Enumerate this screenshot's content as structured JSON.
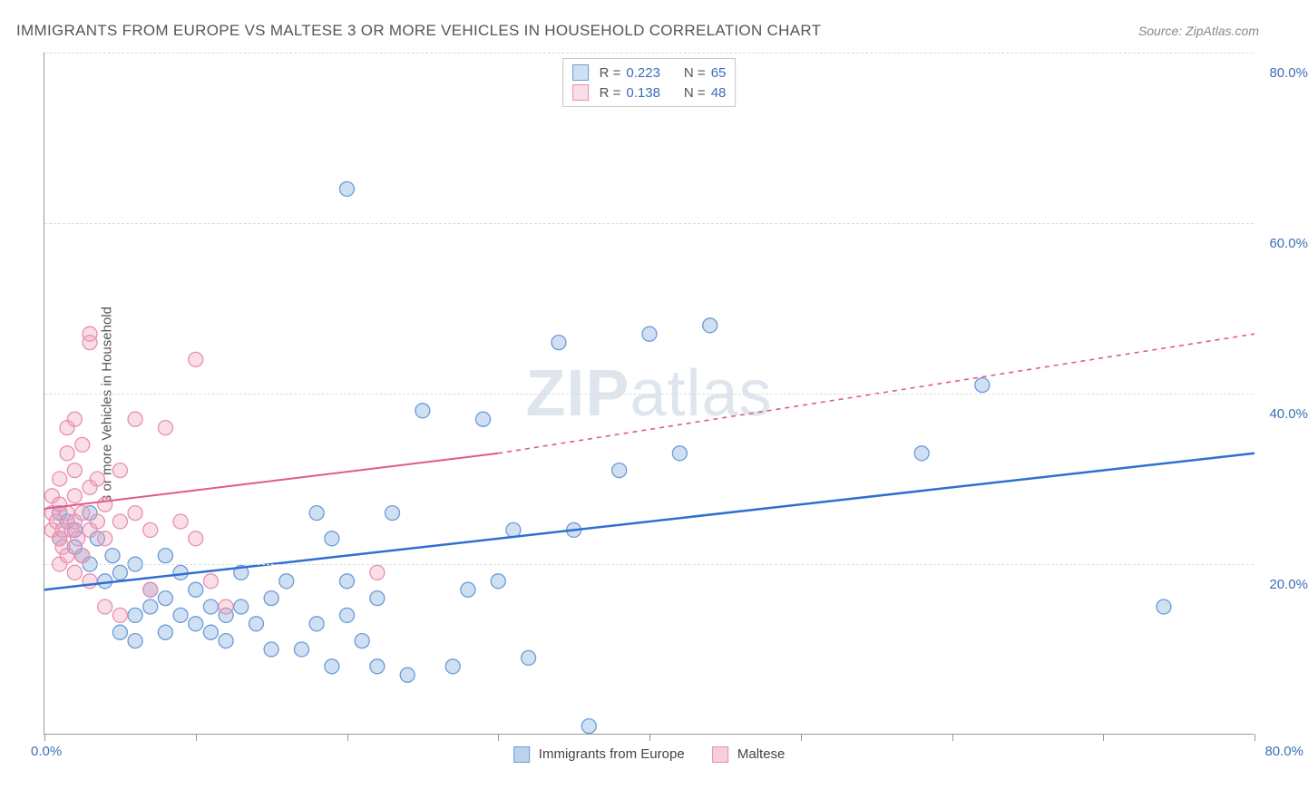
{
  "header": {
    "title": "IMMIGRANTS FROM EUROPE VS MALTESE 3 OR MORE VEHICLES IN HOUSEHOLD CORRELATION CHART",
    "source": "Source: ZipAtlas.com"
  },
  "chart": {
    "type": "scatter",
    "ylabel": "3 or more Vehicles in Household",
    "xlim": [
      0,
      80
    ],
    "ylim": [
      0,
      80
    ],
    "x_origin_label": "0.0%",
    "x_max_label": "80.0%",
    "y_ticks": [
      {
        "value": 20,
        "label": "20.0%"
      },
      {
        "value": 40,
        "label": "40.0%"
      },
      {
        "value": 60,
        "label": "60.0%"
      },
      {
        "value": 80,
        "label": "80.0%"
      }
    ],
    "x_tick_positions": [
      0,
      10,
      20,
      30,
      40,
      50,
      60,
      70,
      80
    ],
    "grid_color": "#dcdcdc",
    "background_color": "#ffffff",
    "axis_color": "#999999",
    "series": [
      {
        "name": "Immigrants from Europe",
        "color_fill": "rgba(120,165,220,0.35)",
        "color_stroke": "#6a9bd8",
        "marker_radius": 8,
        "trend": {
          "x1": 0,
          "y1": 17,
          "x2_solid": 80,
          "y2_solid": 33,
          "color": "#2f6fd0",
          "width": 2.5
        },
        "R_label": "R =",
        "R_value": "0.223",
        "N_label": "N =",
        "N_value": "65",
        "points": [
          [
            1,
            26
          ],
          [
            1,
            23
          ],
          [
            1.5,
            25
          ],
          [
            2,
            24
          ],
          [
            2,
            22
          ],
          [
            2.5,
            21
          ],
          [
            3,
            26
          ],
          [
            3,
            20
          ],
          [
            3.5,
            23
          ],
          [
            4,
            18
          ],
          [
            4.5,
            21
          ],
          [
            5,
            19
          ],
          [
            5,
            12
          ],
          [
            6,
            20
          ],
          [
            6,
            14
          ],
          [
            7,
            15
          ],
          [
            7,
            17
          ],
          [
            8,
            16
          ],
          [
            8,
            12
          ],
          [
            8,
            21
          ],
          [
            9,
            19
          ],
          [
            9,
            14
          ],
          [
            10,
            17
          ],
          [
            10,
            13
          ],
          [
            11,
            15
          ],
          [
            11,
            12
          ],
          [
            12,
            14
          ],
          [
            12,
            11
          ],
          [
            13,
            15
          ],
          [
            13,
            19
          ],
          [
            14,
            13
          ],
          [
            15,
            16
          ],
          [
            15,
            10
          ],
          [
            16,
            18
          ],
          [
            17,
            10
          ],
          [
            18,
            26
          ],
          [
            18,
            13
          ],
          [
            19,
            23
          ],
          [
            19,
            8
          ],
          [
            20,
            14
          ],
          [
            20,
            18
          ],
          [
            21,
            11
          ],
          [
            22,
            16
          ],
          [
            22,
            8
          ],
          [
            23,
            26
          ],
          [
            24,
            7
          ],
          [
            25,
            38
          ],
          [
            27,
            8
          ],
          [
            28,
            17
          ],
          [
            29,
            37
          ],
          [
            30,
            18
          ],
          [
            31,
            24
          ],
          [
            32,
            9
          ],
          [
            34,
            46
          ],
          [
            35,
            24
          ],
          [
            36,
            1
          ],
          [
            38,
            31
          ],
          [
            40,
            47
          ],
          [
            42,
            33
          ],
          [
            44,
            48
          ],
          [
            58,
            33
          ],
          [
            62,
            41
          ],
          [
            74,
            15
          ],
          [
            20,
            64
          ],
          [
            6,
            11
          ]
        ]
      },
      {
        "name": "Maltese",
        "color_fill": "rgba(240,160,185,0.35)",
        "color_stroke": "#e88fb0",
        "marker_radius": 8,
        "trend": {
          "x1": 0,
          "y1": 26.5,
          "x2_solid": 30,
          "y2_solid": 33,
          "x2_dash": 80,
          "y2_dash": 47,
          "color": "#e05a8a",
          "width": 2
        },
        "R_label": "R =",
        "R_value": "0.138",
        "N_label": "N =",
        "N_value": "48",
        "points": [
          [
            0.5,
            24
          ],
          [
            0.5,
            26
          ],
          [
            0.5,
            28
          ],
          [
            0.8,
            25
          ],
          [
            1,
            23
          ],
          [
            1,
            27
          ],
          [
            1,
            20
          ],
          [
            1,
            30
          ],
          [
            1.2,
            24
          ],
          [
            1.2,
            22
          ],
          [
            1.5,
            26
          ],
          [
            1.5,
            21
          ],
          [
            1.5,
            33
          ],
          [
            1.5,
            36
          ],
          [
            1.8,
            24
          ],
          [
            2,
            19
          ],
          [
            2,
            25
          ],
          [
            2,
            28
          ],
          [
            2,
            37
          ],
          [
            2,
            31
          ],
          [
            2.2,
            23
          ],
          [
            2.5,
            26
          ],
          [
            2.5,
            21
          ],
          [
            2.5,
            34
          ],
          [
            3,
            29
          ],
          [
            3,
            24
          ],
          [
            3,
            18
          ],
          [
            3,
            47
          ],
          [
            3,
            46
          ],
          [
            3.5,
            25
          ],
          [
            3.5,
            30
          ],
          [
            4,
            27
          ],
          [
            4,
            23
          ],
          [
            4,
            15
          ],
          [
            5,
            25
          ],
          [
            5,
            31
          ],
          [
            5,
            14
          ],
          [
            6,
            26
          ],
          [
            6,
            37
          ],
          [
            7,
            24
          ],
          [
            7,
            17
          ],
          [
            8,
            36
          ],
          [
            9,
            25
          ],
          [
            10,
            23
          ],
          [
            10,
            44
          ],
          [
            11,
            18
          ],
          [
            12,
            15
          ],
          [
            22,
            19
          ]
        ]
      }
    ],
    "bottom_legend": [
      {
        "label": "Immigrants from Europe",
        "fill": "rgba(120,165,220,0.5)",
        "stroke": "#6a9bd8"
      },
      {
        "label": "Maltese",
        "fill": "rgba(240,160,185,0.5)",
        "stroke": "#e88fb0"
      }
    ],
    "watermark": {
      "bold": "ZIP",
      "rest": "atlas"
    }
  }
}
